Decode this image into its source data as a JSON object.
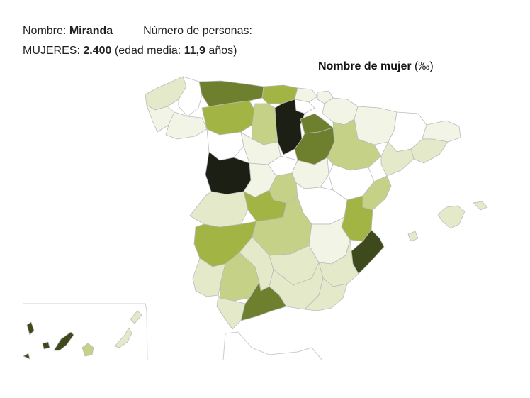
{
  "info": {
    "name_label": "Nombre:",
    "name_value": "Miranda",
    "persons_label": "Número de personas:",
    "women_label": "MUJERES:",
    "women_value": "2.400",
    "age_prefix": "(edad media:",
    "age_value": "11,9",
    "age_suffix": "años)"
  },
  "map": {
    "title": "Nombre de mujer",
    "unit": "(‰)"
  },
  "colors": {
    "darkest": "#1b1f14",
    "very_dark": "#3f4a1c",
    "dark": "#6e7f2d",
    "medium": "#a2b544",
    "medium_light": "#c5d187",
    "light": "#e4eac9",
    "very_light": "#f2f5e6",
    "none": "#ffffff",
    "border": "#bbbbbb"
  }
}
